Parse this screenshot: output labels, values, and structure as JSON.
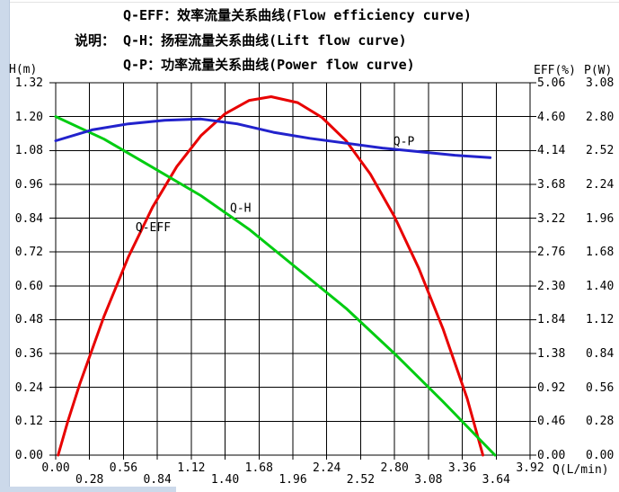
{
  "window": {
    "background": "#ffffff",
    "left_edge_color": "#ccd9ea",
    "bottom_edge_color": "#ccd9ea"
  },
  "legend": {
    "prefix_label": "说明：",
    "lines": [
      {
        "label": "Q-EFF：效率流量关系曲线(Flow efficiency curve)"
      },
      {
        "label": "Q-H：扬程流量关系曲线(Lift flow curve)"
      },
      {
        "label": "Q-P：功率流量关系曲线(Power flow curve)"
      }
    ]
  },
  "chart_data": {
    "type": "line",
    "grid": true,
    "x_axis": {
      "label": "Q(L/min)",
      "min": 0,
      "max": 3.92,
      "step": 0.28,
      "ticks": [
        "0.00",
        "0.28",
        "0.56",
        "0.84",
        "1.12",
        "1.40",
        "1.68",
        "1.96",
        "2.24",
        "2.52",
        "2.80",
        "3.08",
        "3.36",
        "3.64",
        "3.92"
      ]
    },
    "left_axis": {
      "label": "H(m)",
      "min": 0,
      "max": 1.32,
      "step": 0.12,
      "ticks": [
        "1.32",
        "1.20",
        "1.08",
        "0.96",
        "0.84",
        "0.72",
        "0.60",
        "0.48",
        "0.36",
        "0.24",
        "0.12",
        "0.00"
      ]
    },
    "right_axis_eff": {
      "label": "EFF(%)",
      "min": 0,
      "max": 5.06,
      "step": 0.46,
      "ticks": [
        "5.06",
        "4.60",
        "4.14",
        "3.68",
        "3.22",
        "2.76",
        "2.30",
        "1.84",
        "1.38",
        "0.92",
        "0.46",
        "0.00"
      ]
    },
    "right_axis_power": {
      "label": "P(W)",
      "min": 0,
      "max": 3.08,
      "step": 0.28,
      "ticks": [
        "3.08",
        "2.80",
        "2.52",
        "2.24",
        "1.96",
        "1.68",
        "1.40",
        "1.12",
        "0.84",
        "0.56",
        "0.28",
        "0.00"
      ]
    },
    "series": [
      {
        "name": "Q-EFF",
        "axis": "eff",
        "color": "#e80000",
        "label_anchor": [
          0.66,
          3.15
        ],
        "points": [
          [
            0.02,
            0
          ],
          [
            0.1,
            0.46
          ],
          [
            0.2,
            0.97
          ],
          [
            0.4,
            1.89
          ],
          [
            0.6,
            2.69
          ],
          [
            0.8,
            3.37
          ],
          [
            1.0,
            3.92
          ],
          [
            1.2,
            4.34
          ],
          [
            1.4,
            4.64
          ],
          [
            1.6,
            4.82
          ],
          [
            1.78,
            4.87
          ],
          [
            2.0,
            4.79
          ],
          [
            2.2,
            4.59
          ],
          [
            2.4,
            4.27
          ],
          [
            2.6,
            3.82
          ],
          [
            2.8,
            3.24
          ],
          [
            3.0,
            2.54
          ],
          [
            3.2,
            1.72
          ],
          [
            3.4,
            0.77
          ],
          [
            3.53,
            0
          ]
        ]
      },
      {
        "name": "Q-H",
        "axis": "h",
        "color": "#00cc11",
        "label_anchor": [
          1.44,
          0.89
        ],
        "points": [
          [
            0,
            1.2
          ],
          [
            0.4,
            1.12
          ],
          [
            0.8,
            1.02
          ],
          [
            1.2,
            0.92
          ],
          [
            1.6,
            0.8
          ],
          [
            2.0,
            0.66
          ],
          [
            2.4,
            0.52
          ],
          [
            2.8,
            0.36
          ],
          [
            3.2,
            0.19
          ],
          [
            3.63,
            0
          ]
        ]
      },
      {
        "name": "Q-P",
        "axis": "p",
        "color": "#2222cc",
        "label_anchor": [
          2.79,
          2.63
        ],
        "points": [
          [
            0,
            2.6
          ],
          [
            0.3,
            2.69
          ],
          [
            0.6,
            2.74
          ],
          [
            0.9,
            2.77
          ],
          [
            1.2,
            2.78
          ],
          [
            1.5,
            2.74
          ],
          [
            1.8,
            2.67
          ],
          [
            2.1,
            2.62
          ],
          [
            2.4,
            2.58
          ],
          [
            2.7,
            2.54
          ],
          [
            3.0,
            2.51
          ],
          [
            3.3,
            2.48
          ],
          [
            3.59,
            2.46
          ]
        ]
      }
    ]
  }
}
